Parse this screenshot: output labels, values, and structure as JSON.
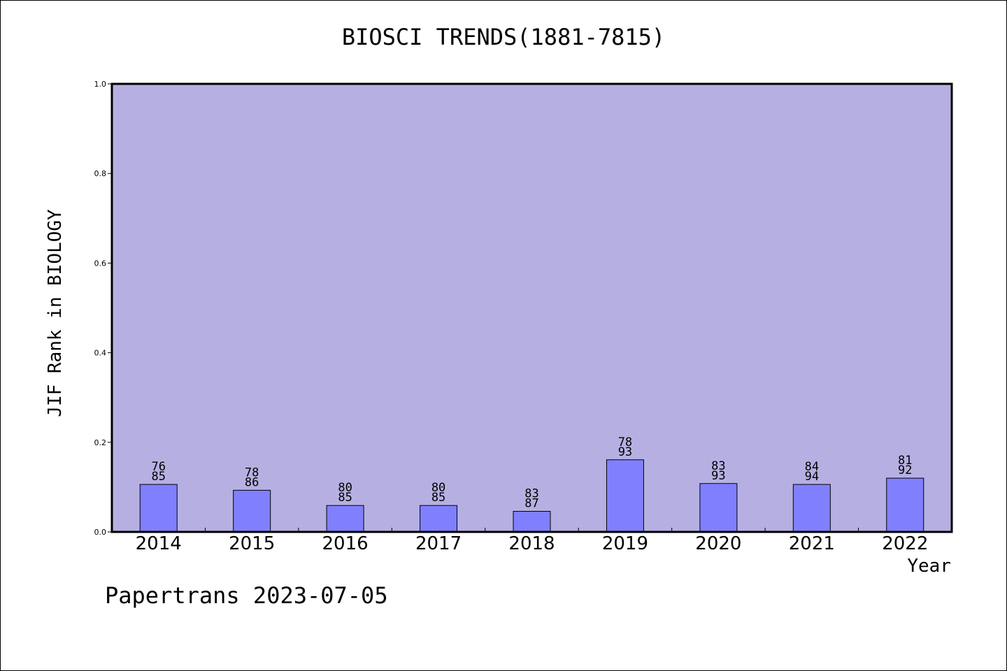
{
  "chart_data": {
    "type": "bar",
    "title": "BIOSCI TRENDS(1881-7815)",
    "ylabel": "JIF Rank in BIOLOGY",
    "xlabel": "Year",
    "categories": [
      "2014",
      "2015",
      "2016",
      "2017",
      "2018",
      "2019",
      "2020",
      "2021",
      "2022"
    ],
    "values": [
      0.106,
      0.093,
      0.059,
      0.059,
      0.046,
      0.161,
      0.108,
      0.106,
      0.12
    ],
    "labels": [
      [
        "76",
        "85"
      ],
      [
        "78",
        "86"
      ],
      [
        "80",
        "85"
      ],
      [
        "80",
        "85"
      ],
      [
        "83",
        "87"
      ],
      [
        "78",
        "93"
      ],
      [
        "83",
        "93"
      ],
      [
        "84",
        "94"
      ],
      [
        "81",
        "92"
      ]
    ],
    "ylim": [
      0,
      1.0
    ],
    "yticks": [
      "0.0",
      "0.2",
      "0.4",
      "0.6",
      "0.8",
      "1.0"
    ],
    "grid": false,
    "colors": {
      "plot_bg": "#b6b0e2",
      "bar": "#8080ff",
      "border": "#000000"
    }
  },
  "footer": "Papertrans 2023-07-05"
}
